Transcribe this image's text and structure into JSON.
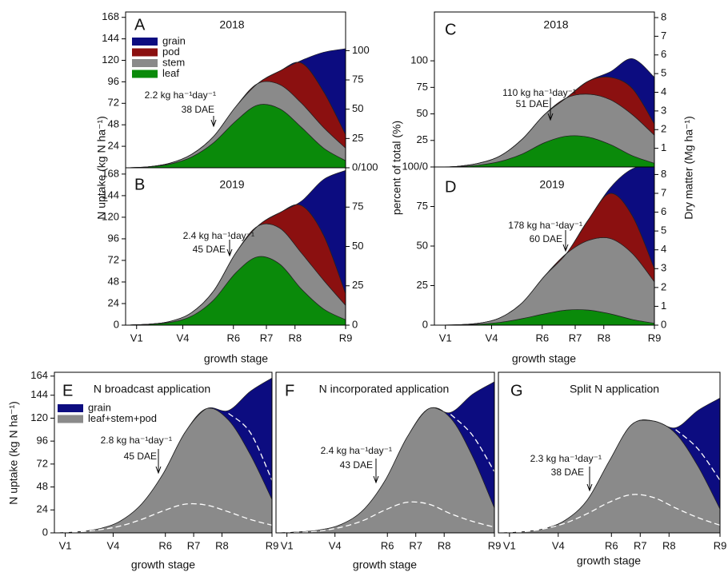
{
  "chart_data": [
    {
      "type": "area",
      "panel": "A",
      "title": "2018",
      "ylabel": "N uptake (kg N ha⁻¹)",
      "legend": true,
      "x": [
        0,
        10,
        20,
        30,
        40,
        50,
        60,
        70,
        80,
        90,
        100
      ],
      "xlim": [
        0,
        100
      ],
      "ylim": [
        0,
        174
      ],
      "yticks": [
        24,
        48,
        72,
        96,
        120,
        144,
        168
      ],
      "y2lim": [
        0,
        133
      ],
      "y2ticks": [
        {
          "value": 0,
          "label": "0/100"
        },
        25,
        50,
        75,
        100
      ],
      "series": [
        {
          "name": "leaf",
          "color": "#0a8a0a",
          "values": [
            0,
            1,
            4,
            12,
            28,
            52,
            70,
            66,
            45,
            22,
            8
          ]
        },
        {
          "name": "stem",
          "color": "#8a8a8a",
          "values": [
            0,
            0,
            1,
            3,
            7,
            16,
            24,
            27,
            27,
            23,
            14
          ]
        },
        {
          "name": "pod",
          "color": "#8b1010",
          "values": [
            0,
            0,
            0,
            0,
            0,
            0,
            0,
            15,
            45,
            40,
            15
          ]
        },
        {
          "name": "grain",
          "color": "#0c0c80",
          "values": [
            0,
            0,
            0,
            0,
            0,
            0,
            0,
            0,
            3,
            44,
            96
          ]
        }
      ],
      "annotation": [
        "2.2 kg ha⁻¹day⁻¹",
        "38 DAE"
      ]
    },
    {
      "type": "area",
      "panel": "B",
      "title": "2019",
      "xlabel": "growth stage",
      "x": [
        0,
        10,
        20,
        30,
        40,
        50,
        60,
        70,
        80,
        90,
        100
      ],
      "xlim": [
        0,
        100
      ],
      "xticks": [
        {
          "value": 5,
          "label": "V1"
        },
        {
          "value": 26,
          "label": "V4"
        },
        {
          "value": 49,
          "label": "R6"
        },
        {
          "value": 64,
          "label": "R7"
        },
        {
          "value": 77,
          "label": "R8"
        },
        {
          "value": 100,
          "label": "R9"
        }
      ],
      "ylim": [
        0,
        175
      ],
      "yticks": [
        0,
        24,
        48,
        72,
        96,
        120,
        144,
        168
      ],
      "y2lim": [
        0,
        100
      ],
      "y2ticks": [
        0,
        25,
        50,
        75
      ],
      "series": [
        {
          "color": "#0a8a0a",
          "values": [
            0,
            1,
            3,
            10,
            28,
            58,
            76,
            68,
            40,
            18,
            6
          ]
        },
        {
          "color": "#8a8a8a",
          "values": [
            0,
            0,
            1,
            4,
            10,
            22,
            34,
            40,
            40,
            32,
            16
          ]
        },
        {
          "color": "#8b1010",
          "values": [
            0,
            0,
            0,
            0,
            0,
            0,
            0,
            17,
            53,
            50,
            13
          ]
        },
        {
          "color": "#0c0c80",
          "values": [
            0,
            0,
            0,
            0,
            0,
            0,
            0,
            0,
            5,
            62,
            137
          ]
        }
      ],
      "annotation": [
        "2.4 kg ha⁻¹day⁻¹",
        "45 DAE"
      ]
    },
    {
      "type": "area",
      "panel": "C",
      "title": "2018",
      "ylabel": "percent of total (%)",
      "y2label": "Dry matter (Mg ha⁻¹)",
      "x": [
        0,
        10,
        20,
        30,
        40,
        50,
        60,
        70,
        80,
        90,
        100
      ],
      "xlim": [
        0,
        100
      ],
      "ylim": [
        0,
        146
      ],
      "yticks": [
        {
          "value": 0,
          "label": "100/0"
        },
        25,
        50,
        75,
        100
      ],
      "y2lim": [
        0,
        8.3
      ],
      "y2ticks": [
        1,
        2,
        3,
        4,
        5,
        6,
        7,
        8
      ],
      "series": [
        {
          "color": "#0a8a0a",
          "axis": "y2",
          "values": [
            0,
            0.02,
            0.1,
            0.3,
            0.7,
            1.3,
            1.65,
            1.6,
            1.2,
            0.6,
            0.2
          ]
        },
        {
          "color": "#8a8a8a",
          "axis": "y2",
          "values": [
            0,
            0.01,
            0.1,
            0.3,
            0.8,
            1.5,
            2.05,
            2.3,
            2.4,
            2.2,
            1.5
          ]
        },
        {
          "color": "#8b1010",
          "axis": "y2",
          "values": [
            0,
            0,
            0,
            0,
            0,
            0,
            0,
            0.7,
            1.2,
            1.4,
            0.6
          ]
        },
        {
          "color": "#0c0c80",
          "axis": "y2",
          "values": [
            0,
            0,
            0,
            0,
            0,
            0,
            0,
            0,
            0.3,
            1.6,
            2.5
          ]
        }
      ],
      "annotation": [
        "110 kg ha⁻¹day⁻¹",
        "51 DAE"
      ]
    },
    {
      "type": "area",
      "panel": "D",
      "title": "2019",
      "xlabel": "growth stage",
      "x": [
        0,
        10,
        20,
        30,
        40,
        50,
        60,
        70,
        80,
        90,
        100
      ],
      "xlim": [
        0,
        100
      ],
      "xticks": [
        {
          "value": 5,
          "label": "V1"
        },
        {
          "value": 26,
          "label": "V4"
        },
        {
          "value": 49,
          "label": "R6"
        },
        {
          "value": 64,
          "label": "R7"
        },
        {
          "value": 77,
          "label": "R8"
        },
        {
          "value": 100,
          "label": "R9"
        }
      ],
      "ylim": [
        0,
        100
      ],
      "yticks": [
        0,
        25,
        50,
        75
      ],
      "y2lim": [
        0,
        8.4
      ],
      "y2ticks": [
        0,
        1,
        2,
        3,
        4,
        5,
        6,
        7,
        8
      ],
      "series": [
        {
          "color": "#0a8a0a",
          "axis": "y2",
          "values": [
            0,
            0.01,
            0.05,
            0.15,
            0.35,
            0.6,
            0.8,
            0.8,
            0.6,
            0.3,
            0.1
          ]
        },
        {
          "color": "#8a8a8a",
          "axis": "y2",
          "values": [
            0,
            0.01,
            0.05,
            0.25,
            0.85,
            2.0,
            3.0,
            3.7,
            4.0,
            3.5,
            2.2
          ]
        },
        {
          "color": "#8b1010",
          "axis": "y2",
          "values": [
            0,
            0,
            0,
            0,
            0,
            0,
            0,
            1.1,
            2.4,
            2.0,
            0.7
          ]
        },
        {
          "color": "#0c0c80",
          "axis": "y2",
          "values": [
            0,
            0,
            0,
            0,
            0,
            0,
            0,
            0,
            0.3,
            2.5,
            5.5
          ]
        }
      ],
      "annotation": [
        "178 kg ha⁻¹day⁻¹",
        "60 DAE"
      ]
    },
    {
      "type": "area",
      "panel": "E",
      "title": "N broadcast application",
      "ylabel": "N uptake (kg N ha⁻¹)",
      "xlabel": "growth stage",
      "legend": true,
      "x": [
        0,
        10,
        20,
        30,
        40,
        50,
        60,
        70,
        80,
        90,
        100
      ],
      "xlim": [
        0,
        100
      ],
      "xticks": [
        {
          "value": 5,
          "label": "V1"
        },
        {
          "value": 27,
          "label": "V4"
        },
        {
          "value": 51,
          "label": "R6"
        },
        {
          "value": 64,
          "label": "R7"
        },
        {
          "value": 77,
          "label": "R8"
        },
        {
          "value": 100,
          "label": "R9"
        }
      ],
      "ylim": [
        0,
        168
      ],
      "yticks": [
        0,
        24,
        48,
        72,
        96,
        120,
        144,
        164
      ],
      "series": [
        {
          "name": "leaf+stem+pod",
          "color": "#8a8a8a",
          "values": [
            0,
            1,
            4,
            12,
            30,
            62,
            105,
            130,
            118,
            82,
            35
          ]
        },
        {
          "name": "grain",
          "color": "#0c0c80",
          "values": [
            0,
            0,
            0,
            0,
            0,
            0,
            0,
            0,
            10,
            66,
            127
          ]
        }
      ],
      "reference_lines": [
        {
          "color": "#ffffff",
          "values": [
            0,
            1,
            3,
            7,
            14,
            23,
            30,
            29,
            22,
            14,
            8
          ]
        },
        {
          "color": "#ffffff",
          "values": [
            null,
            null,
            null,
            null,
            null,
            null,
            null,
            null,
            125,
            105,
            55
          ]
        }
      ],
      "annotation": [
        "2.8 kg ha⁻¹day⁻¹",
        "45 DAE"
      ]
    },
    {
      "type": "area",
      "panel": "F",
      "title": "N incorporated application",
      "xlabel": "growth stage",
      "x": [
        0,
        10,
        20,
        30,
        40,
        50,
        60,
        70,
        80,
        90,
        100
      ],
      "xlim": [
        0,
        100
      ],
      "xticks": [
        {
          "value": 5,
          "label": "V1"
        },
        {
          "value": 27,
          "label": "V4"
        },
        {
          "value": 51,
          "label": "R6"
        },
        {
          "value": 64,
          "label": "R7"
        },
        {
          "value": 77,
          "label": "R8"
        },
        {
          "value": 100,
          "label": "R9"
        }
      ],
      "ylim": [
        0,
        168
      ],
      "series": [
        {
          "color": "#8a8a8a",
          "values": [
            0,
            1,
            3,
            9,
            24,
            55,
            100,
            130,
            120,
            80,
            26
          ]
        },
        {
          "color": "#0c0c80",
          "values": [
            0,
            0,
            0,
            0,
            0,
            0,
            0,
            0,
            6,
            65,
            132
          ]
        }
      ],
      "reference_lines": [
        {
          "color": "#ffffff",
          "values": [
            0,
            0.5,
            2,
            6,
            13,
            24,
            32,
            30,
            20,
            12,
            6
          ]
        },
        {
          "color": "#ffffff",
          "values": [
            null,
            null,
            null,
            null,
            null,
            null,
            null,
            null,
            124,
            102,
            64
          ]
        }
      ],
      "annotation": [
        "2.4 kg ha⁻¹day⁻¹",
        "43 DAE"
      ]
    },
    {
      "type": "area",
      "panel": "G",
      "title": "Split N application",
      "xlabel": "growth stage",
      "x": [
        0,
        10,
        20,
        30,
        40,
        50,
        60,
        70,
        80,
        90,
        100
      ],
      "xlim": [
        0,
        100
      ],
      "xticks": [
        {
          "value": 5,
          "label": "V1"
        },
        {
          "value": 27,
          "label": "V4"
        },
        {
          "value": 51,
          "label": "R6"
        },
        {
          "value": 64,
          "label": "R7"
        },
        {
          "value": 77,
          "label": "R8"
        },
        {
          "value": 100,
          "label": "R9"
        }
      ],
      "ylim": [
        0,
        168
      ],
      "series": [
        {
          "color": "#8a8a8a",
          "values": [
            0,
            1,
            4,
            13,
            34,
            75,
            113,
            117,
            104,
            70,
            25
          ]
        },
        {
          "color": "#0c0c80",
          "values": [
            0,
            0,
            0,
            0,
            0,
            0,
            0,
            0,
            6,
            58,
            116
          ]
        }
      ],
      "reference_lines": [
        {
          "color": "#ffffff",
          "values": [
            0,
            1,
            4,
            10,
            20,
            32,
            40,
            37,
            26,
            16,
            8
          ]
        },
        {
          "color": "#ffffff",
          "values": [
            null,
            null,
            null,
            null,
            null,
            null,
            null,
            null,
            108,
            88,
            55
          ]
        }
      ],
      "annotation": [
        "2.3 kg ha⁻¹day⁻¹",
        "38 DAE"
      ]
    }
  ]
}
